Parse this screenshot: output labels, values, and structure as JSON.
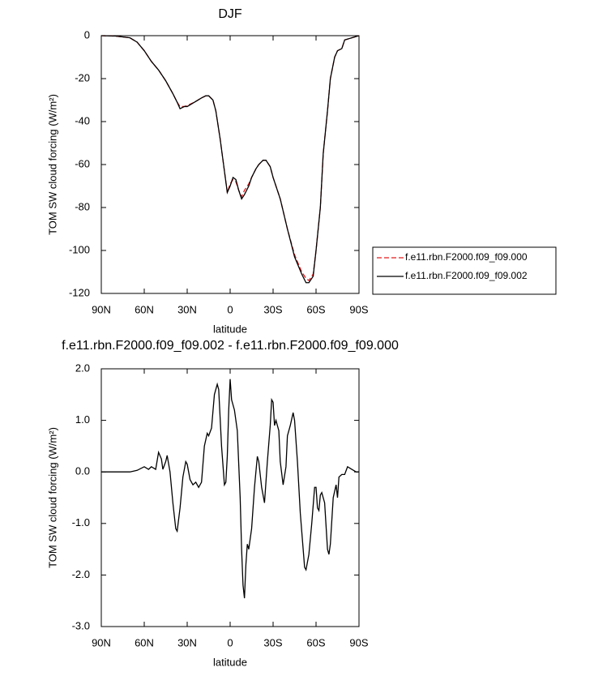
{
  "chart_data": [
    {
      "type": "line",
      "title": "DJF",
      "x_label": "latitude",
      "y_label": "TOM SW cloud forcing (W/m²)",
      "xlim": [
        90,
        -90
      ],
      "xticks": [
        {
          "value": 90,
          "label": "90N"
        },
        {
          "value": 60,
          "label": "60N"
        },
        {
          "value": 30,
          "label": "30N"
        },
        0,
        {
          "value": -30,
          "label": "30S"
        },
        {
          "value": -60,
          "label": "60S"
        },
        {
          "value": -90,
          "label": "90S"
        }
      ],
      "ylim": [
        -120,
        0
      ],
      "yticks": [
        0,
        -20,
        -40,
        -60,
        -80,
        -100,
        -120
      ],
      "legend": "right",
      "x": [
        90,
        80,
        70,
        65,
        60,
        55,
        50,
        45,
        40,
        37,
        35,
        32,
        30,
        25,
        20,
        17,
        15,
        12,
        10,
        7,
        5,
        3,
        2,
        0,
        -2,
        -4,
        -6,
        -8,
        -10,
        -13,
        -15,
        -18,
        -20,
        -23,
        -25,
        -28,
        -30,
        -35,
        -40,
        -45,
        -50,
        -53,
        -55,
        -58,
        -60,
        -63,
        -65,
        -68,
        -70,
        -73,
        -75,
        -78,
        -80,
        -85,
        -90
      ],
      "series": [
        {
          "name": "f.e11.rbn.F2000.f09_f09.000",
          "color": "#e31a1c",
          "dash": true,
          "values": [
            0,
            -0.2,
            -1,
            -3,
            -7,
            -12,
            -16,
            -21,
            -27,
            -31,
            -33,
            -33,
            -32.5,
            -31,
            -29,
            -28,
            -28,
            -30,
            -35,
            -48,
            -58,
            -68,
            -73,
            -69,
            -67,
            -68,
            -72,
            -75,
            -72,
            -69,
            -66,
            -62,
            -60,
            -58,
            -58,
            -61,
            -66,
            -76,
            -90,
            -102,
            -110,
            -113,
            -114,
            -111,
            -100,
            -80,
            -55,
            -35,
            -20,
            -10,
            -7,
            -6,
            -2,
            -1,
            0
          ]
        },
        {
          "name": "f.e11.rbn.F2000.f09_f09.002",
          "color": "#000000",
          "dash": false,
          "values": [
            0,
            -0.2,
            -1,
            -3,
            -7,
            -12,
            -16,
            -21,
            -27,
            -31,
            -34,
            -33,
            -33,
            -31,
            -29,
            -28,
            -28,
            -30,
            -35,
            -48,
            -58,
            -68,
            -73,
            -70,
            -66,
            -67,
            -72,
            -76,
            -74,
            -70,
            -66,
            -62,
            -60,
            -58,
            -58,
            -61,
            -66,
            -76,
            -90,
            -103,
            -111,
            -115,
            -115,
            -112,
            -100,
            -80,
            -55,
            -35,
            -20,
            -10,
            -7,
            -6,
            -2,
            -1,
            0
          ]
        }
      ]
    },
    {
      "type": "line",
      "title": "f.e11.rbn.F2000.f09_f09.002 - f.e11.rbn.F2000.f09_f09.000",
      "x_label": "latitude",
      "y_label": "TOM SW cloud forcing (W/m²)",
      "xlim": [
        90,
        -90
      ],
      "xticks": [
        {
          "value": 90,
          "label": "90N"
        },
        {
          "value": 60,
          "label": "60N"
        },
        {
          "value": 30,
          "label": "30N"
        },
        0,
        {
          "value": -30,
          "label": "30S"
        },
        {
          "value": -60,
          "label": "60S"
        },
        {
          "value": -90,
          "label": "90S"
        }
      ],
      "ylim": [
        -3,
        2
      ],
      "yticks": [
        {
          "value": 2,
          "label": "2.0"
        },
        {
          "value": 1,
          "label": "1.0"
        },
        {
          "value": 0,
          "label": "0.0"
        },
        {
          "value": -1,
          "label": "-1.0"
        },
        {
          "value": -2,
          "label": "-2.0"
        },
        {
          "value": -3,
          "label": "-3.0"
        }
      ],
      "x": [
        90,
        70,
        65,
        60,
        57,
        55,
        52,
        50,
        48,
        47,
        45,
        44,
        42,
        40,
        38,
        37,
        35,
        33,
        31,
        30,
        28,
        26,
        24,
        22,
        20,
        18,
        16,
        15,
        13,
        11,
        9,
        8,
        6,
        4,
        3,
        2,
        1,
        0,
        -1,
        -3,
        -5,
        -7,
        -8,
        -9,
        -10,
        -11,
        -12,
        -13,
        -15,
        -17,
        -19,
        -20,
        -22,
        -24,
        -26,
        -28,
        -29,
        -30,
        -31,
        -32,
        -34,
        -35,
        -37,
        -39,
        -40,
        -42,
        -44,
        -45,
        -47,
        -49,
        -51,
        -52,
        -53,
        -55,
        -57,
        -59,
        -60,
        -61,
        -62,
        -63,
        -64,
        -66,
        -68,
        -69,
        -70,
        -72,
        -74,
        -75,
        -76,
        -78,
        -80,
        -82,
        -85,
        -88,
        -90
      ],
      "series": [
        {
          "color": "#000000",
          "values": [
            0,
            0,
            0.03,
            0.1,
            0.05,
            0.1,
            0.05,
            0.38,
            0.25,
            0.05,
            0.2,
            0.32,
            0,
            -0.6,
            -1.1,
            -1.15,
            -0.7,
            -0.1,
            0.2,
            0.15,
            -0.15,
            -0.25,
            -0.2,
            -0.3,
            -0.2,
            0.5,
            0.75,
            0.7,
            0.85,
            1.5,
            1.7,
            1.6,
            0.5,
            -0.25,
            -0.2,
            0.3,
            1.2,
            1.8,
            1.4,
            1.2,
            0.8,
            -0.5,
            -1.5,
            -2.2,
            -2.45,
            -1.8,
            -1.4,
            -1.5,
            -1.1,
            -0.3,
            0.3,
            0.2,
            -0.3,
            -0.6,
            0.2,
            0.9,
            1.4,
            1.35,
            0.9,
            1,
            0.8,
            0.2,
            -0.25,
            0.1,
            0.7,
            0.9,
            1.15,
            1,
            0.2,
            -0.8,
            -1.5,
            -1.85,
            -1.9,
            -1.6,
            -1,
            -0.3,
            -0.3,
            -0.7,
            -0.75,
            -0.45,
            -0.4,
            -0.6,
            -1.5,
            -1.6,
            -1.4,
            -0.5,
            -0.25,
            -0.5,
            -0.1,
            -0.05,
            -0.05,
            0.1,
            0.05,
            0,
            0
          ]
        }
      ]
    }
  ]
}
